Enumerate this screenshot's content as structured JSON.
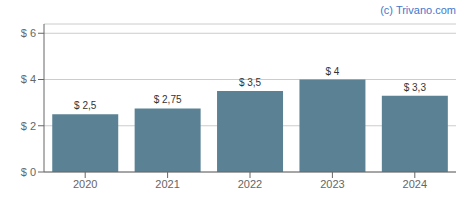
{
  "chart_data": {
    "type": "bar",
    "categories": [
      "2020",
      "2021",
      "2022",
      "2023",
      "2024"
    ],
    "values": [
      2.5,
      2.75,
      3.5,
      4.0,
      3.3
    ],
    "value_labels": [
      "$ 2,5",
      "$ 2,75",
      "$ 3,5",
      "$ 4",
      "$ 3,3"
    ],
    "data_labels": true,
    "color": "#5b8294",
    "ylim": [
      0,
      6.4
    ],
    "yticks": [
      {
        "value": 0,
        "label": "$ 0"
      },
      {
        "value": 2,
        "label": "$ 2"
      },
      {
        "value": 4,
        "label": "$ 4"
      },
      {
        "value": 6,
        "label": "$ 6"
      }
    ],
    "grid": true,
    "annotations": [
      "(c) Trivano.com"
    ]
  }
}
